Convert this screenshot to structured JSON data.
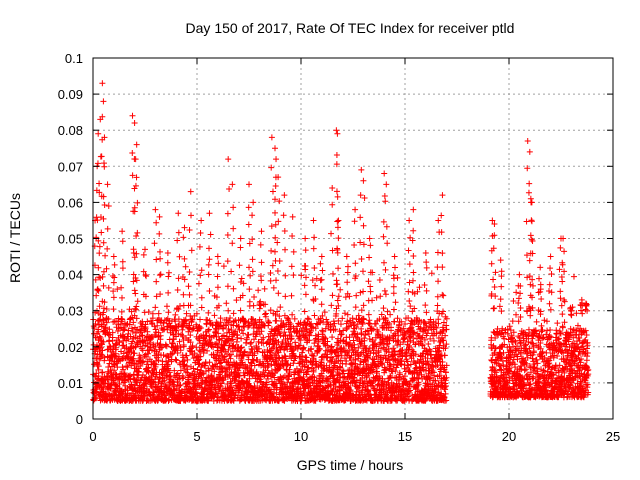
{
  "chart_data": {
    "type": "scatter",
    "title": "Day 150 of 2017, Rate Of TEC Index for receiver ptld",
    "xlabel": "GPS time / hours",
    "ylabel": "ROTI / TECUs",
    "xlim": [
      0,
      25
    ],
    "ylim": [
      0,
      0.1
    ],
    "xticks": [
      0,
      5,
      10,
      15,
      20,
      25
    ],
    "xtick_labels": [
      "0",
      "5",
      "10",
      "15",
      "20",
      "25"
    ],
    "yticks": [
      0,
      0.01,
      0.02,
      0.03,
      0.04,
      0.05,
      0.06,
      0.07,
      0.08,
      0.09,
      0.1
    ],
    "ytick_labels": [
      "0",
      "0.01",
      "0.02",
      "0.03",
      "0.04",
      "0.05",
      "0.06",
      "0.07",
      "0.08",
      "0.09",
      "0.1"
    ],
    "grid": true,
    "marker": "+",
    "marker_color": "#ff0000",
    "data_gaps_hours": [
      [
        17.0,
        19.1
      ]
    ],
    "series": [
      {
        "name": "ROTI",
        "note": "dense per-epoch samples, mostly 0.005–0.03 TECU/s with spikes up to ~0.093",
        "segments": [
          {
            "x_start": 0.0,
            "x_end": 17.0,
            "base_min": 0.005,
            "base_max": 0.028
          },
          {
            "x_start": 19.1,
            "x_end": 23.8,
            "base_min": 0.006,
            "base_max": 0.025
          }
        ],
        "spikes": [
          {
            "x": 0.1,
            "y": 0.055
          },
          {
            "x": 0.2,
            "y": 0.07
          },
          {
            "x": 0.25,
            "y": 0.079
          },
          {
            "x": 0.35,
            "y": 0.083
          },
          {
            "x": 0.45,
            "y": 0.093
          },
          {
            "x": 0.5,
            "y": 0.088
          },
          {
            "x": 0.55,
            "y": 0.078
          },
          {
            "x": 0.7,
            "y": 0.065
          },
          {
            "x": 1.0,
            "y": 0.045
          },
          {
            "x": 1.4,
            "y": 0.052
          },
          {
            "x": 1.9,
            "y": 0.084
          },
          {
            "x": 2.0,
            "y": 0.082
          },
          {
            "x": 2.05,
            "y": 0.072
          },
          {
            "x": 2.1,
            "y": 0.076
          },
          {
            "x": 2.5,
            "y": 0.047
          },
          {
            "x": 3.0,
            "y": 0.058
          },
          {
            "x": 3.2,
            "y": 0.056
          },
          {
            "x": 3.6,
            "y": 0.046
          },
          {
            "x": 4.1,
            "y": 0.057
          },
          {
            "x": 4.4,
            "y": 0.053
          },
          {
            "x": 4.7,
            "y": 0.063
          },
          {
            "x": 5.2,
            "y": 0.055
          },
          {
            "x": 5.6,
            "y": 0.057
          },
          {
            "x": 6.0,
            "y": 0.045
          },
          {
            "x": 6.5,
            "y": 0.072
          },
          {
            "x": 6.7,
            "y": 0.065
          },
          {
            "x": 7.1,
            "y": 0.05
          },
          {
            "x": 7.5,
            "y": 0.065
          },
          {
            "x": 7.7,
            "y": 0.06
          },
          {
            "x": 8.1,
            "y": 0.052
          },
          {
            "x": 8.6,
            "y": 0.078
          },
          {
            "x": 8.75,
            "y": 0.075
          },
          {
            "x": 8.8,
            "y": 0.072
          },
          {
            "x": 8.9,
            "y": 0.067
          },
          {
            "x": 9.2,
            "y": 0.062
          },
          {
            "x": 9.6,
            "y": 0.056
          },
          {
            "x": 10.2,
            "y": 0.05
          },
          {
            "x": 10.6,
            "y": 0.055
          },
          {
            "x": 11.0,
            "y": 0.045
          },
          {
            "x": 11.5,
            "y": 0.064
          },
          {
            "x": 11.7,
            "y": 0.08
          },
          {
            "x": 11.75,
            "y": 0.079
          },
          {
            "x": 11.8,
            "y": 0.055
          },
          {
            "x": 12.2,
            "y": 0.045
          },
          {
            "x": 12.6,
            "y": 0.058
          },
          {
            "x": 12.9,
            "y": 0.069
          },
          {
            "x": 13.0,
            "y": 0.066
          },
          {
            "x": 13.3,
            "y": 0.05
          },
          {
            "x": 14.0,
            "y": 0.068
          },
          {
            "x": 14.1,
            "y": 0.065
          },
          {
            "x": 14.5,
            "y": 0.045
          },
          {
            "x": 15.2,
            "y": 0.055
          },
          {
            "x": 15.4,
            "y": 0.058
          },
          {
            "x": 16.0,
            "y": 0.046
          },
          {
            "x": 16.6,
            "y": 0.055
          },
          {
            "x": 16.8,
            "y": 0.062
          },
          {
            "x": 19.2,
            "y": 0.055
          },
          {
            "x": 19.3,
            "y": 0.054
          },
          {
            "x": 19.6,
            "y": 0.044
          },
          {
            "x": 20.5,
            "y": 0.04
          },
          {
            "x": 20.9,
            "y": 0.077
          },
          {
            "x": 21.0,
            "y": 0.074
          },
          {
            "x": 21.05,
            "y": 0.061
          },
          {
            "x": 21.1,
            "y": 0.06
          },
          {
            "x": 21.5,
            "y": 0.042
          },
          {
            "x": 22.0,
            "y": 0.045
          },
          {
            "x": 22.5,
            "y": 0.05
          },
          {
            "x": 22.6,
            "y": 0.05
          },
          {
            "x": 23.0,
            "y": 0.03
          },
          {
            "x": 23.5,
            "y": 0.033
          },
          {
            "x": 23.7,
            "y": 0.032
          }
        ]
      }
    ]
  }
}
